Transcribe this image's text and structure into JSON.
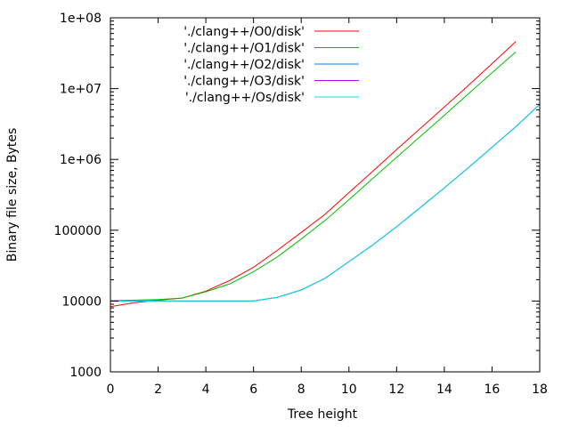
{
  "chart_data": {
    "type": "line",
    "title": "",
    "xlabel": "Tree height",
    "ylabel": "Binary file size, Bytes",
    "xlim": [
      0,
      18
    ],
    "ylim": [
      1000,
      100000000
    ],
    "yscale": "log",
    "grid": false,
    "legend_position": "top-left",
    "x_ticks": [
      0,
      2,
      4,
      6,
      8,
      10,
      12,
      14,
      16,
      18
    ],
    "x_tick_labels": [
      "0",
      "2",
      "4",
      "6",
      "8",
      "10",
      "12",
      "14",
      "16",
      "18"
    ],
    "y_ticks": [
      1000,
      10000,
      100000,
      1000000,
      10000000,
      100000000
    ],
    "y_tick_labels": [
      "1000",
      "10000",
      "100000",
      "1e+06",
      "1e+07",
      "1e+08"
    ],
    "series": [
      {
        "name": "'./clang++/O0/disk'",
        "color": "#ff0000",
        "x": [
          0,
          1,
          2,
          3,
          4,
          5,
          6,
          7,
          8,
          9,
          10,
          11,
          12,
          13,
          14,
          15,
          16,
          17
        ],
        "y": [
          8300,
          9500,
          10300,
          11000,
          13800,
          19500,
          30000,
          52000,
          93000,
          168000,
          340000,
          680000,
          1380000,
          2750000,
          5500000,
          11000000,
          22500000,
          46000000
        ]
      },
      {
        "name": "'./clang++/O1/disk'",
        "color": "#00c000",
        "x": [
          0,
          1,
          2,
          3,
          4,
          5,
          6,
          7,
          8,
          9,
          10,
          11,
          12,
          13,
          14,
          15,
          16,
          17
        ],
        "y": [
          10100,
          10300,
          10500,
          11000,
          13500,
          17500,
          26000,
          42000,
          75000,
          138000,
          270000,
          540000,
          1070000,
          2120000,
          4200000,
          8400000,
          16700000,
          33000000
        ]
      },
      {
        "name": "'./clang++/O2/disk'",
        "color": "#0080ff",
        "x": [
          0,
          1,
          2,
          3,
          4,
          5,
          6,
          7,
          8,
          9,
          10,
          11,
          12,
          13,
          14,
          15,
          16,
          17,
          18
        ],
        "y": [
          10000,
          10000,
          10000,
          10000,
          10000,
          10000,
          10000,
          11300,
          14300,
          21000,
          36000,
          62000,
          112000,
          210000,
          395000,
          760000,
          1480000,
          2900000,
          6000000
        ]
      },
      {
        "name": "'./clang++/O3/disk'",
        "color": "#c000ff",
        "x": [
          0,
          1,
          2,
          3,
          4,
          5,
          6,
          7,
          8,
          9,
          10,
          11,
          12,
          13,
          14,
          15,
          16,
          17,
          18
        ],
        "y": [
          10000,
          10000,
          10000,
          10000,
          10000,
          10000,
          10000,
          11300,
          14300,
          21000,
          36000,
          62000,
          112000,
          210000,
          395000,
          760000,
          1480000,
          2900000,
          6000000
        ]
      },
      {
        "name": "'./clang++/Os/disk'",
        "color": "#00e0e0",
        "x": [
          0,
          1,
          2,
          3,
          4,
          5,
          6,
          7,
          8,
          9,
          10,
          11,
          12,
          13,
          14,
          15,
          16,
          17,
          18
        ],
        "y": [
          10000,
          10000,
          10000,
          10000,
          10000,
          10000,
          10000,
          11300,
          14300,
          21000,
          36000,
          62000,
          112000,
          210000,
          395000,
          760000,
          1480000,
          2900000,
          6000000
        ]
      }
    ]
  }
}
